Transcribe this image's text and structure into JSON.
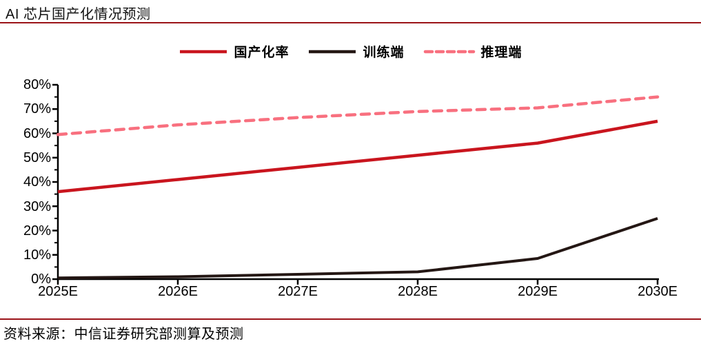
{
  "header": {
    "title": "AI 芯片国产化情况预测"
  },
  "legend": {
    "items": [
      {
        "label": "国产化率",
        "color": "#c9151e",
        "style": "solid"
      },
      {
        "label": "训练端",
        "color": "#241714",
        "style": "solid"
      },
      {
        "label": "推理端",
        "color": "#f8707f",
        "style": "dashed"
      }
    ]
  },
  "chart_data": {
    "type": "line",
    "title": "AI 芯片国产化情况预测",
    "categories": [
      "2025E",
      "2026E",
      "2027E",
      "2028E",
      "2029E",
      "2030E"
    ],
    "series": [
      {
        "name": "国产化率",
        "color": "#c9151e",
        "style": "solid",
        "values": [
          36,
          41,
          46,
          51,
          56,
          65
        ]
      },
      {
        "name": "训练端",
        "color": "#241714",
        "style": "solid",
        "values": [
          0.5,
          1,
          2,
          3,
          8.5,
          25
        ]
      },
      {
        "name": "推理端",
        "color": "#f8707f",
        "style": "dashed",
        "values": [
          59.5,
          63.5,
          66.5,
          69,
          70.5,
          75
        ]
      }
    ],
    "ylim": [
      0,
      80
    ],
    "ytick_labels": [
      "80%",
      "70%",
      "60%",
      "50%",
      "40%",
      "30%",
      "20%",
      "10%",
      "0%"
    ],
    "ytick_interval_pct": 10,
    "y_minor_tick_interval_pct": 5,
    "xlabel": "",
    "ylabel": "",
    "grid": false,
    "legend_position": "top"
  },
  "footer": {
    "source": "资料来源：中信证券研究部测算及预测"
  },
  "colors": {
    "rule_red": "#9b1318",
    "axis": "#000000",
    "text": "#000000"
  }
}
